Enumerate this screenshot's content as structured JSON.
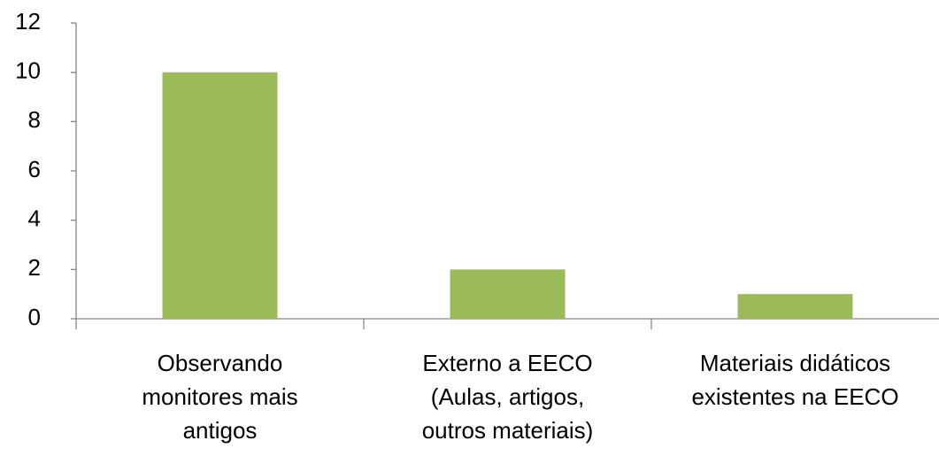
{
  "chart_data": {
    "type": "bar",
    "categories": [
      "Observando\nmonitores mais\nantigos",
      "Externo a EECO\n(Aulas, artigos,\noutros materiais)",
      "Materiais didáticos\nexistentes na EECO"
    ],
    "values": [
      10,
      2,
      1
    ],
    "color": "#9bbb59",
    "ylim": [
      0,
      12
    ],
    "yticks": [
      0,
      2,
      4,
      6,
      8,
      10,
      12
    ],
    "grid": false
  }
}
